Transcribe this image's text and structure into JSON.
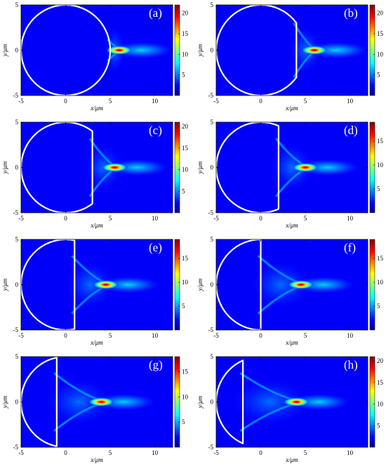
{
  "chart_data": [
    {
      "type": "heatmap",
      "panel_label": "(a)",
      "xlabel": "x/μm",
      "ylabel": "y/μm",
      "xlim": [
        -5,
        12
      ],
      "ylim": [
        -5,
        5
      ],
      "xticks": [
        "-5",
        "0",
        "5",
        "10"
      ],
      "yticks": [
        "5",
        "0",
        "-5"
      ],
      "colorbar_ticks": [
        "20",
        "15",
        "10",
        "5"
      ],
      "colorbar_range": [
        0,
        22
      ],
      "focus_x": 6.0,
      "peak": 22,
      "lens_flat_x": null,
      "lens_radius": 5
    },
    {
      "type": "heatmap",
      "panel_label": "(b)",
      "xlabel": "x/μm",
      "ylabel": "y/μm",
      "xlim": [
        -5,
        12
      ],
      "ylim": [
        -5,
        5
      ],
      "xticks": [
        "-5",
        "0",
        "5",
        "10"
      ],
      "yticks": [
        "5",
        "0",
        "-5"
      ],
      "colorbar_ticks": [
        "20",
        "15",
        "10",
        "5"
      ],
      "colorbar_range": [
        0,
        22
      ],
      "focus_x": 6.0,
      "peak": 22,
      "lens_flat_x": 4,
      "lens_radius": 5
    },
    {
      "type": "heatmap",
      "panel_label": "(c)",
      "xlabel": "x/μm",
      "ylabel": "y/μm",
      "xlim": [
        -5,
        12
      ],
      "ylim": [
        -5,
        5
      ],
      "xticks": [
        "-5",
        "0",
        "5",
        "10"
      ],
      "yticks": [
        "5",
        "0",
        "-5"
      ],
      "colorbar_ticks": [
        "20",
        "15",
        "10",
        "5"
      ],
      "colorbar_range": [
        0,
        21
      ],
      "focus_x": 5.5,
      "peak": 21,
      "lens_flat_x": 3,
      "lens_radius": 5
    },
    {
      "type": "heatmap",
      "panel_label": "(d)",
      "xlabel": "x/μm",
      "ylabel": "y/μm",
      "xlim": [
        -5,
        12
      ],
      "ylim": [
        -5,
        5
      ],
      "xticks": [
        "-5",
        "0",
        "5",
        "10"
      ],
      "yticks": [
        "5",
        "0",
        "-5"
      ],
      "colorbar_ticks": [
        "15",
        "10",
        "5"
      ],
      "colorbar_range": [
        0,
        19
      ],
      "focus_x": 5.0,
      "peak": 19,
      "lens_flat_x": 2,
      "lens_radius": 5
    },
    {
      "type": "heatmap",
      "panel_label": "(e)",
      "xlabel": "x/μm",
      "ylabel": "y/μm",
      "xlim": [
        -5,
        12
      ],
      "ylim": [
        -5,
        5
      ],
      "xticks": [
        "-5",
        "0",
        "5",
        "10"
      ],
      "yticks": [
        "5",
        "0",
        "-5"
      ],
      "colorbar_ticks": [
        "15",
        "10",
        "5"
      ],
      "colorbar_range": [
        0,
        19
      ],
      "focus_x": 4.5,
      "peak": 19,
      "lens_flat_x": 1,
      "lens_radius": 5
    },
    {
      "type": "heatmap",
      "panel_label": "(f)",
      "xlabel": "x/μm",
      "ylabel": "y/μm",
      "xlim": [
        -5,
        12
      ],
      "ylim": [
        -5,
        5
      ],
      "xticks": [
        "-5",
        "0",
        "5",
        "10"
      ],
      "yticks": [
        "5",
        "0",
        "-5"
      ],
      "colorbar_ticks": [
        "15",
        "10",
        "5"
      ],
      "colorbar_range": [
        0,
        19
      ],
      "focus_x": 4.5,
      "peak": 19,
      "lens_flat_x": 0,
      "lens_radius": 5
    },
    {
      "type": "heatmap",
      "panel_label": "(g)",
      "xlabel": "x/μm",
      "ylabel": "y/μm",
      "xlim": [
        -5,
        12
      ],
      "ylim": [
        -5,
        5
      ],
      "xticks": [
        "-5",
        "0",
        "5",
        "10"
      ],
      "yticks": [
        "5",
        "0",
        "-5"
      ],
      "colorbar_ticks": [
        "15",
        "10",
        "5"
      ],
      "colorbar_range": [
        0,
        18
      ],
      "focus_x": 4.0,
      "peak": 18,
      "lens_flat_x": -1,
      "lens_radius": 5
    },
    {
      "type": "heatmap",
      "panel_label": "(h)",
      "xlabel": "x/μm",
      "ylabel": "y/μm",
      "xlim": [
        -5,
        12
      ],
      "ylim": [
        -5,
        5
      ],
      "xticks": [
        "-5",
        "0",
        "5",
        "10"
      ],
      "yticks": [
        "5",
        "0",
        "-5"
      ],
      "colorbar_ticks": [
        "20",
        "15",
        "10",
        "5"
      ],
      "colorbar_range": [
        0,
        21
      ],
      "focus_x": 4.0,
      "peak": 21,
      "lens_flat_x": -2,
      "lens_radius": 5
    }
  ]
}
